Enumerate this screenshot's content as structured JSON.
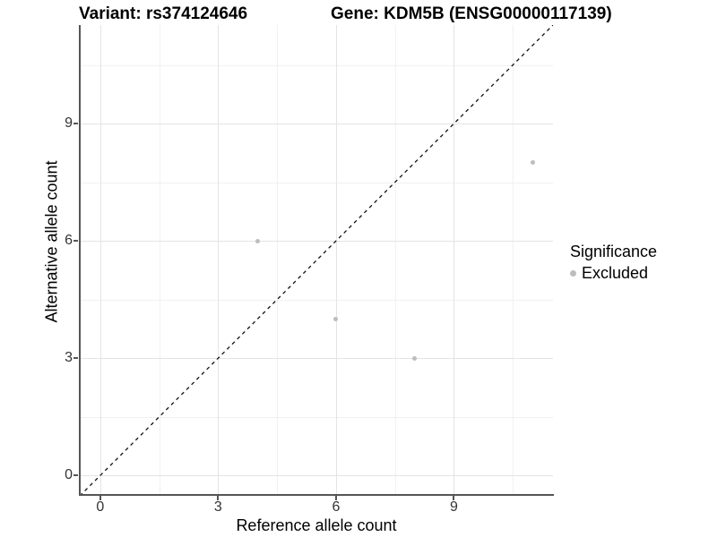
{
  "chart_data": {
    "type": "scatter",
    "title_left": "Variant: rs374124646",
    "title_right": "Gene: KDM5B (ENSG00000117139)",
    "xlabel": "Reference allele count",
    "ylabel": "Alternative allele count",
    "xlim": [
      -0.52,
      11.52
    ],
    "ylim": [
      -0.52,
      11.52
    ],
    "x_ticks": [
      0,
      3,
      6,
      9
    ],
    "y_ticks": [
      0,
      3,
      6,
      9
    ],
    "x_minor_ticks": [
      1.5,
      4.5,
      7.5,
      10.5
    ],
    "y_minor_ticks": [
      1.5,
      4.5,
      7.5,
      10.5
    ],
    "grid": "major+minor",
    "series": [
      {
        "name": "Excluded",
        "color": "#bdbdbd",
        "points": [
          {
            "x": 4,
            "y": 6
          },
          {
            "x": 6,
            "y": 4
          },
          {
            "x": 8,
            "y": 3
          },
          {
            "x": 11,
            "y": 8
          }
        ]
      }
    ],
    "reference_line": {
      "type": "identity",
      "slope": 1,
      "intercept": 0,
      "style": "dashed",
      "color": "#111111"
    },
    "legend": {
      "title": "Significance",
      "position": "right",
      "items": [
        {
          "label": "Excluded",
          "color": "#bdbdbd"
        }
      ]
    }
  },
  "colors": {
    "point": "#bdbdbd",
    "axis_line": "#555555",
    "grid_major": "#e4e4e4",
    "grid_minor": "#f1f1f1",
    "tick_label": "#333333",
    "reference_line": "#111111"
  }
}
